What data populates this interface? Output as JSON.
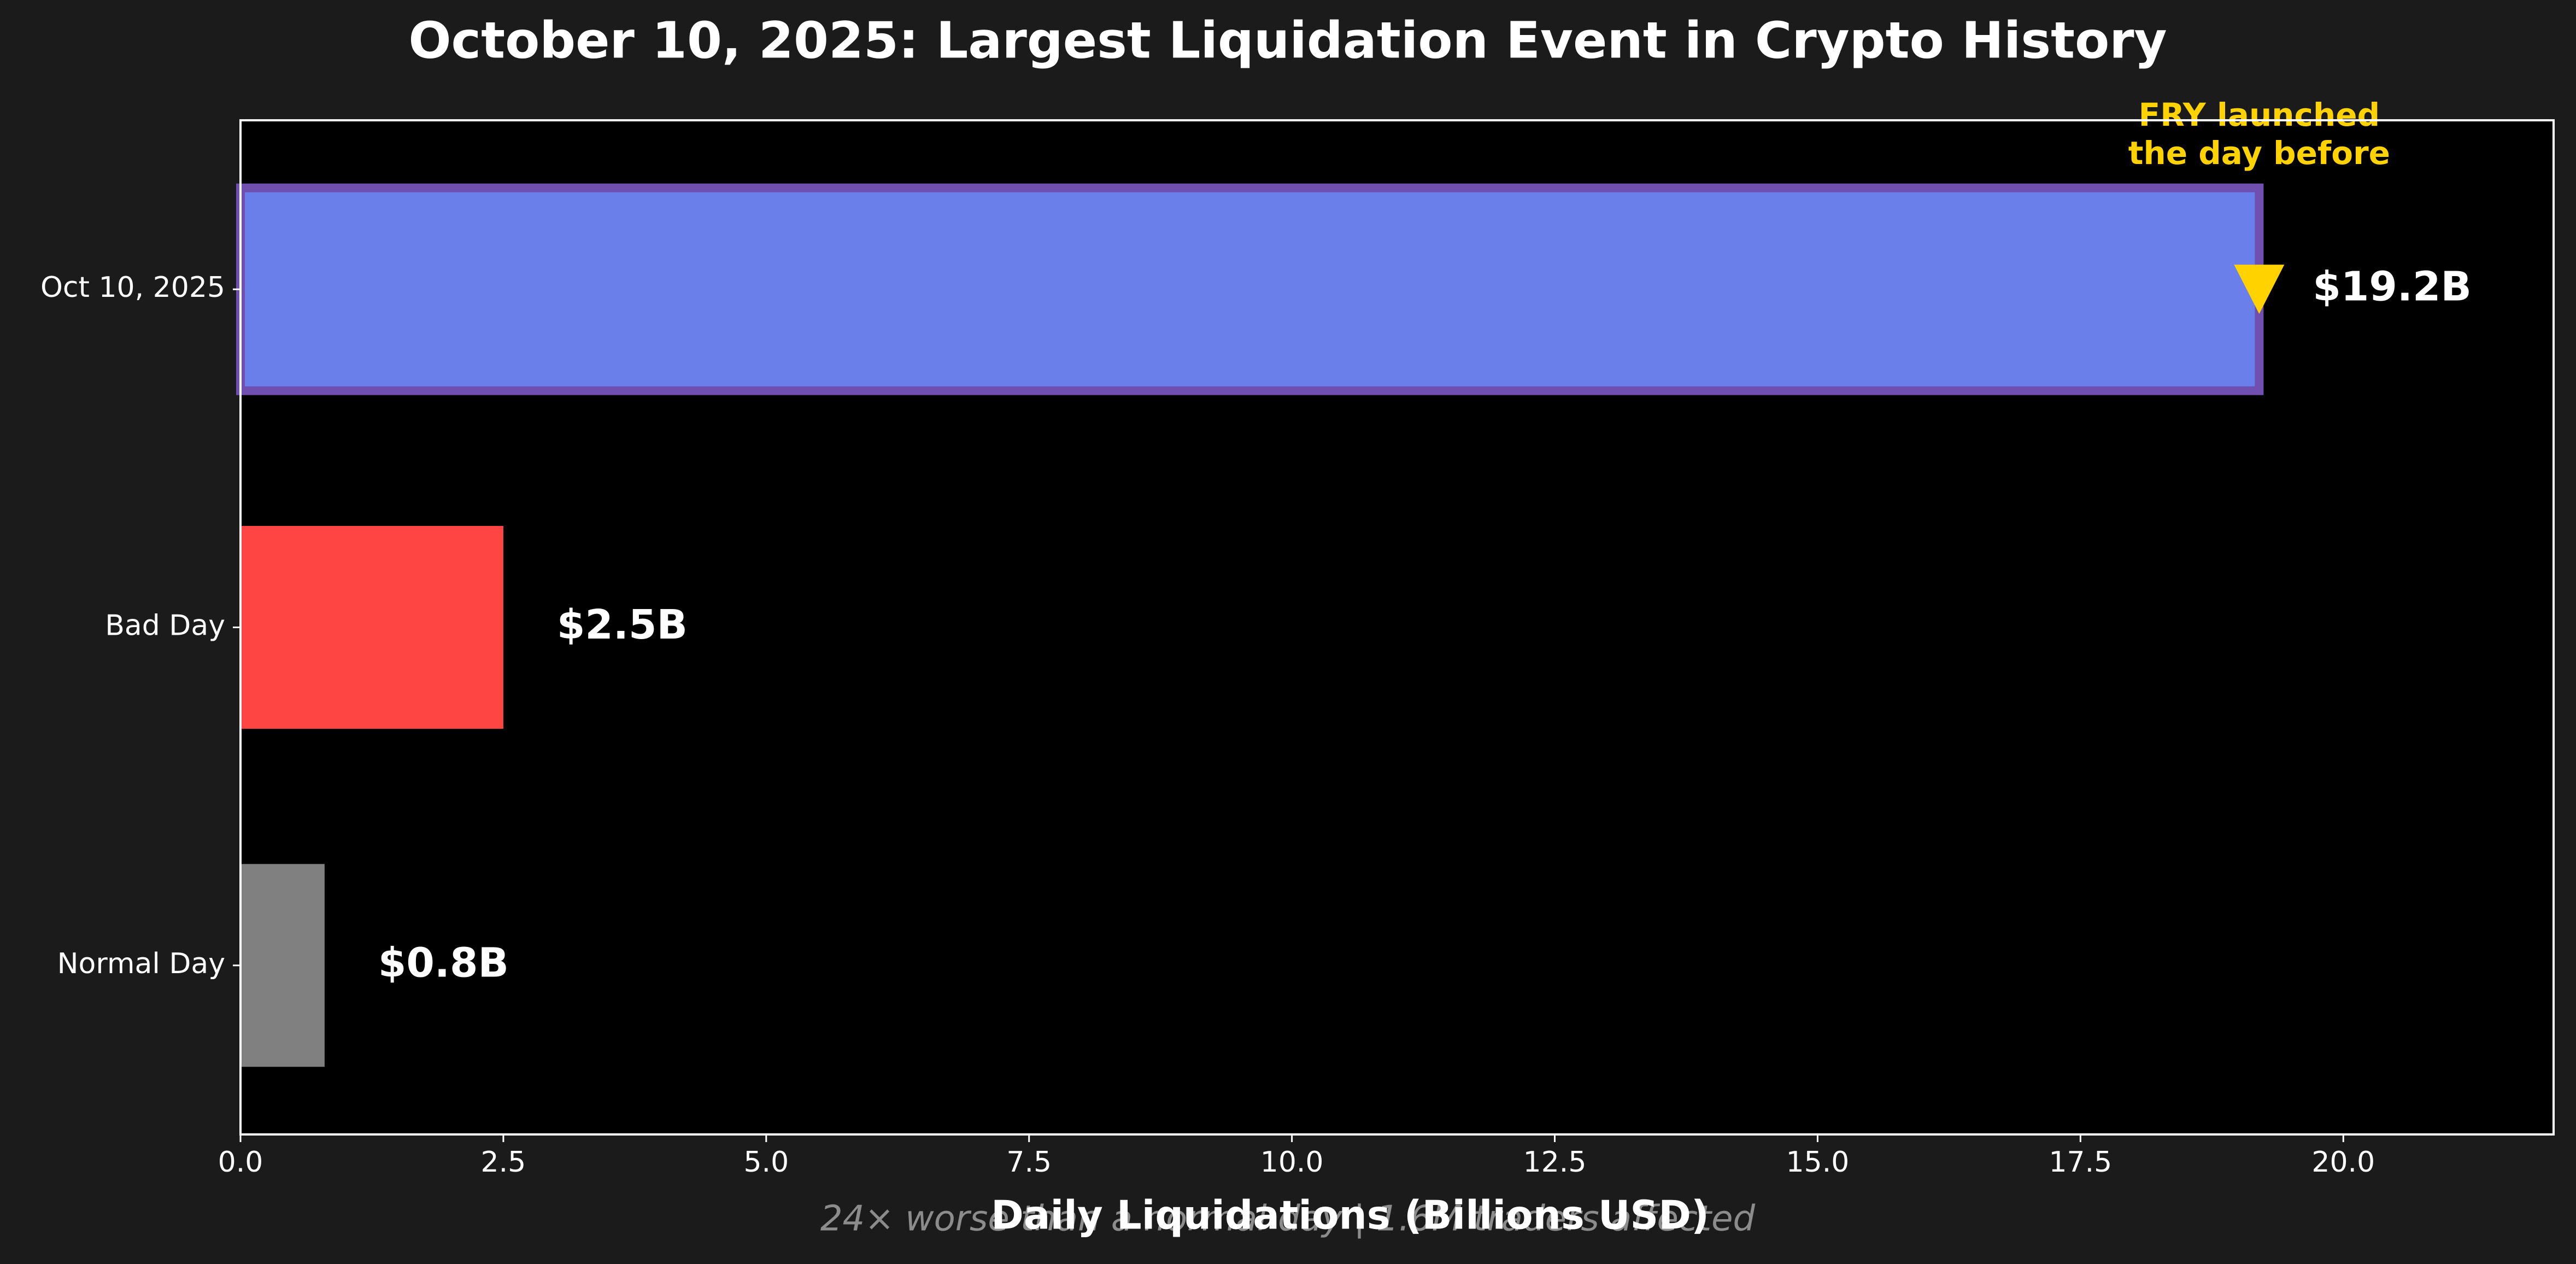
{
  "chart_data": {
    "type": "bar",
    "orientation": "horizontal",
    "title": "October 10, 2025: Largest Liquidation Event in Crypto History",
    "xlabel": "Daily Liquidations (Billions USD)",
    "ylabel": "",
    "xlim": [
      0,
      22
    ],
    "xticks": [
      0.0,
      2.5,
      5.0,
      7.5,
      10.0,
      12.5,
      15.0,
      17.5,
      20.0
    ],
    "xtick_labels": [
      "0.0",
      "2.5",
      "5.0",
      "7.5",
      "10.0",
      "12.5",
      "15.0",
      "17.5",
      "20.0"
    ],
    "grid": false,
    "categories": [
      "Oct 10, 2025",
      "Bad Day",
      "Normal Day"
    ],
    "values": [
      19.2,
      2.5,
      0.8
    ],
    "value_labels": [
      "$19.2B",
      "$2.5B",
      "$0.8B"
    ],
    "colors": [
      "#6a7fea",
      "#ff4444",
      "#808080"
    ],
    "highlight_border_color": "#6f4fb0",
    "annotation": {
      "text": "FRY launched\nthe day before",
      "color": "#ffd200",
      "marker": "down-triangle",
      "category": "Oct 10, 2025",
      "x": 19.2
    },
    "footnote": "24× worse than a normal day | 1.6M traders affected",
    "colors_theme": {
      "background": "#1b1b1b",
      "plot": "#000000",
      "text": "#ffffff",
      "footnote": "#8c8c8c"
    }
  }
}
